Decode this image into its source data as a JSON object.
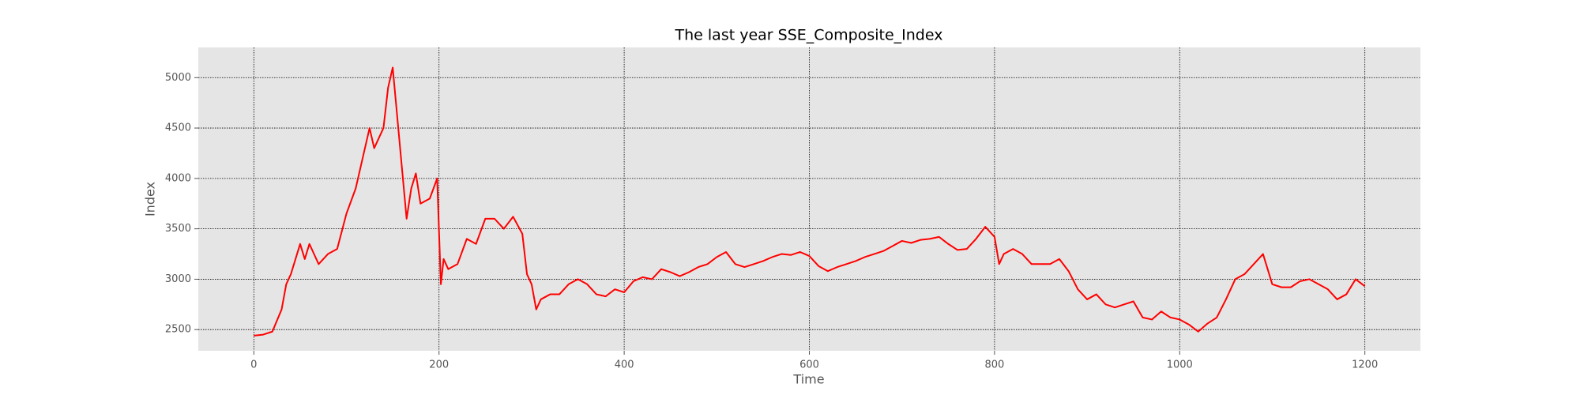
{
  "chart_data": {
    "type": "line",
    "title": "The last year SSE_Composite_Index",
    "x_label": "Time",
    "y_label": "Index",
    "color": "#ff0000",
    "grid": true,
    "xlim": [
      -60,
      1260
    ],
    "ylim": [
      2290,
      5300
    ],
    "xticks": [
      0,
      200,
      400,
      600,
      800,
      1000,
      1200
    ],
    "yticks": [
      2500,
      3000,
      3500,
      4000,
      4500,
      5000
    ],
    "x": [
      0,
      10,
      20,
      30,
      35,
      40,
      50,
      55,
      60,
      70,
      80,
      90,
      100,
      110,
      120,
      125,
      130,
      140,
      145,
      150,
      155,
      160,
      165,
      170,
      175,
      180,
      190,
      198,
      202,
      205,
      210,
      220,
      230,
      240,
      250,
      260,
      270,
      280,
      290,
      295,
      300,
      305,
      310,
      320,
      330,
      340,
      350,
      360,
      370,
      380,
      390,
      400,
      410,
      420,
      430,
      440,
      450,
      460,
      470,
      480,
      490,
      500,
      510,
      520,
      530,
      540,
      550,
      560,
      570,
      580,
      590,
      600,
      610,
      620,
      630,
      640,
      650,
      660,
      670,
      680,
      690,
      700,
      710,
      720,
      730,
      740,
      750,
      760,
      770,
      780,
      790,
      800,
      805,
      810,
      820,
      830,
      840,
      850,
      860,
      870,
      880,
      890,
      900,
      910,
      920,
      930,
      940,
      950,
      960,
      970,
      980,
      990,
      1000,
      1010,
      1020,
      1030,
      1040,
      1050,
      1060,
      1070,
      1080,
      1090,
      1100,
      1110,
      1120,
      1130,
      1140,
      1150,
      1160,
      1170,
      1180,
      1190,
      1200
    ],
    "values": [
      2440,
      2450,
      2480,
      2700,
      2950,
      3050,
      3350,
      3200,
      3350,
      3150,
      3250,
      3300,
      3650,
      3900,
      4300,
      4500,
      4300,
      4500,
      4900,
      5100,
      4600,
      4100,
      3600,
      3900,
      4050,
      3750,
      3800,
      4000,
      2950,
      3200,
      3100,
      3150,
      3400,
      3350,
      3600,
      3600,
      3500,
      3620,
      3450,
      3050,
      2950,
      2700,
      2800,
      2850,
      2850,
      2950,
      3000,
      2950,
      2850,
      2830,
      2900,
      2870,
      2980,
      3020,
      3000,
      3100,
      3070,
      3030,
      3070,
      3120,
      3150,
      3220,
      3270,
      3150,
      3120,
      3150,
      3180,
      3220,
      3250,
      3240,
      3270,
      3230,
      3130,
      3080,
      3120,
      3150,
      3180,
      3220,
      3250,
      3280,
      3330,
      3380,
      3360,
      3390,
      3400,
      3420,
      3350,
      3290,
      3300,
      3400,
      3520,
      3420,
      3150,
      3250,
      3300,
      3250,
      3150,
      3150,
      3150,
      3200,
      3080,
      2900,
      2800,
      2850,
      2750,
      2720,
      2750,
      2780,
      2620,
      2600,
      2680,
      2620,
      2600,
      2550,
      2480,
      2560,
      2620,
      2800,
      3000,
      3050,
      3150,
      3250,
      2950,
      2920,
      2920,
      2980,
      3000,
      2950,
      2900,
      2800,
      2850,
      3000,
      2930
    ]
  }
}
